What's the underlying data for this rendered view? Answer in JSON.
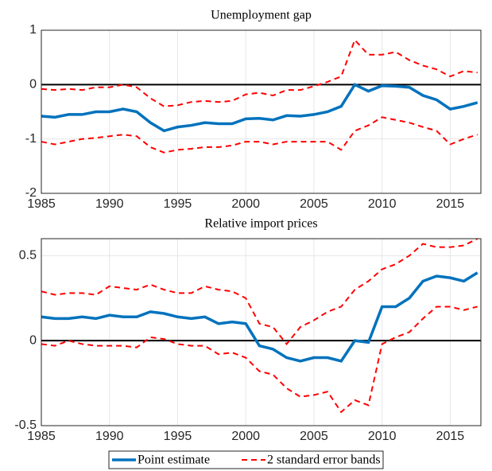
{
  "chart_data": [
    {
      "type": "line",
      "title": "Unemployment gap",
      "x": [
        1985,
        1986,
        1987,
        1988,
        1989,
        1990,
        1991,
        1992,
        1993,
        1994,
        1995,
        1996,
        1997,
        1998,
        1999,
        2000,
        2001,
        2002,
        2003,
        2004,
        2005,
        2006,
        2007,
        2008,
        2009,
        2010,
        2011,
        2012,
        2013,
        2014,
        2015,
        2016,
        2017
      ],
      "xlim": [
        1985,
        2017.25
      ],
      "xticks": [
        1985,
        1990,
        1995,
        2000,
        2005,
        2010,
        2015
      ],
      "ylim": [
        -2,
        1
      ],
      "yticks": [
        -2,
        -1,
        0,
        1
      ],
      "grid": true,
      "hline": 0,
      "series": [
        {
          "name": "Point estimate",
          "color": "#0072bd",
          "dash": false,
          "values": [
            -0.58,
            -0.6,
            -0.55,
            -0.55,
            -0.5,
            -0.5,
            -0.45,
            -0.5,
            -0.7,
            -0.85,
            -0.78,
            -0.75,
            -0.7,
            -0.72,
            -0.72,
            -0.63,
            -0.62,
            -0.65,
            -0.57,
            -0.58,
            -0.55,
            -0.5,
            -0.4,
            0.0,
            -0.12,
            -0.02,
            -0.03,
            -0.05,
            -0.2,
            -0.28,
            -0.45,
            -0.4,
            -0.33
          ]
        },
        {
          "name": "2 standard error bands",
          "color": "#ff0000",
          "dash": true,
          "values": [
            -0.08,
            -0.1,
            -0.08,
            -0.1,
            -0.05,
            -0.05,
            0.0,
            -0.05,
            -0.25,
            -0.4,
            -0.38,
            -0.32,
            -0.3,
            -0.32,
            -0.3,
            -0.18,
            -0.15,
            -0.2,
            -0.1,
            -0.1,
            -0.03,
            0.05,
            0.15,
            0.82,
            0.55,
            0.55,
            0.6,
            0.45,
            0.35,
            0.28,
            0.15,
            0.25,
            0.22
          ]
        },
        {
          "name": "2 standard error bands",
          "color": "#ff0000",
          "dash": true,
          "values": [
            -1.05,
            -1.1,
            -1.05,
            -1.0,
            -0.98,
            -0.95,
            -0.92,
            -0.95,
            -1.15,
            -1.25,
            -1.2,
            -1.18,
            -1.15,
            -1.15,
            -1.12,
            -1.05,
            -1.05,
            -1.1,
            -1.05,
            -1.05,
            -1.05,
            -1.05,
            -1.2,
            -0.85,
            -0.75,
            -0.6,
            -0.65,
            -0.7,
            -0.78,
            -0.85,
            -1.1,
            -1.0,
            -0.92
          ]
        }
      ]
    },
    {
      "type": "line",
      "title": "Relative import prices",
      "x": [
        1985,
        1986,
        1987,
        1988,
        1989,
        1990,
        1991,
        1992,
        1993,
        1994,
        1995,
        1996,
        1997,
        1998,
        1999,
        2000,
        2001,
        2002,
        2003,
        2004,
        2005,
        2006,
        2007,
        2008,
        2009,
        2010,
        2011,
        2012,
        2013,
        2014,
        2015,
        2016,
        2017
      ],
      "xlim": [
        1985,
        2017.25
      ],
      "xticks": [
        1985,
        1990,
        1995,
        2000,
        2005,
        2010,
        2015
      ],
      "ylim": [
        -0.5,
        0.6
      ],
      "yticks": [
        -0.5,
        0,
        0.5
      ],
      "grid": true,
      "hline": 0,
      "series": [
        {
          "name": "Point estimate",
          "color": "#0072bd",
          "dash": false,
          "values": [
            0.14,
            0.13,
            0.13,
            0.14,
            0.13,
            0.15,
            0.14,
            0.14,
            0.17,
            0.16,
            0.14,
            0.13,
            0.14,
            0.1,
            0.11,
            0.1,
            -0.03,
            -0.05,
            -0.1,
            -0.12,
            -0.1,
            -0.1,
            -0.12,
            0.0,
            -0.01,
            0.2,
            0.2,
            0.25,
            0.35,
            0.38,
            0.37,
            0.35,
            0.4
          ]
        },
        {
          "name": "2 standard error bands",
          "color": "#ff0000",
          "dash": true,
          "values": [
            0.29,
            0.27,
            0.28,
            0.28,
            0.27,
            0.32,
            0.31,
            0.3,
            0.33,
            0.3,
            0.28,
            0.28,
            0.32,
            0.3,
            0.29,
            0.25,
            0.1,
            0.08,
            -0.02,
            0.08,
            0.12,
            0.17,
            0.2,
            0.3,
            0.35,
            0.42,
            0.45,
            0.5,
            0.57,
            0.55,
            0.55,
            0.56,
            0.6
          ]
        },
        {
          "name": "2 standard error bands",
          "color": "#ff0000",
          "dash": true,
          "values": [
            -0.02,
            -0.03,
            0.0,
            -0.02,
            -0.03,
            -0.03,
            -0.03,
            -0.04,
            0.02,
            0.01,
            -0.02,
            -0.03,
            -0.03,
            -0.08,
            -0.07,
            -0.1,
            -0.18,
            -0.2,
            -0.28,
            -0.33,
            -0.32,
            -0.3,
            -0.42,
            -0.35,
            -0.38,
            -0.02,
            0.02,
            0.05,
            0.13,
            0.2,
            0.2,
            0.18,
            0.2
          ]
        }
      ]
    }
  ]
}
